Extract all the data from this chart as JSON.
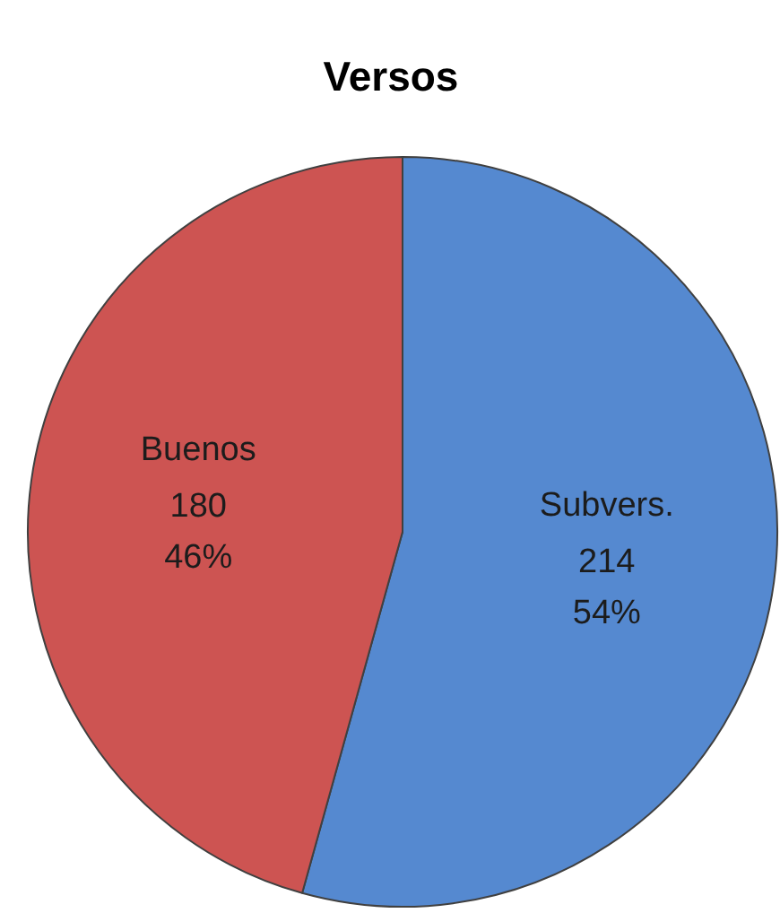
{
  "chart_data": {
    "type": "pie",
    "title": "Versos",
    "categories": [
      "Subvers.",
      "Buenos"
    ],
    "values": [
      214,
      180
    ],
    "colors": [
      "#5589d0",
      "#cd5452"
    ],
    "value_labels": [
      "214\n54%",
      "180\n46%"
    ]
  }
}
